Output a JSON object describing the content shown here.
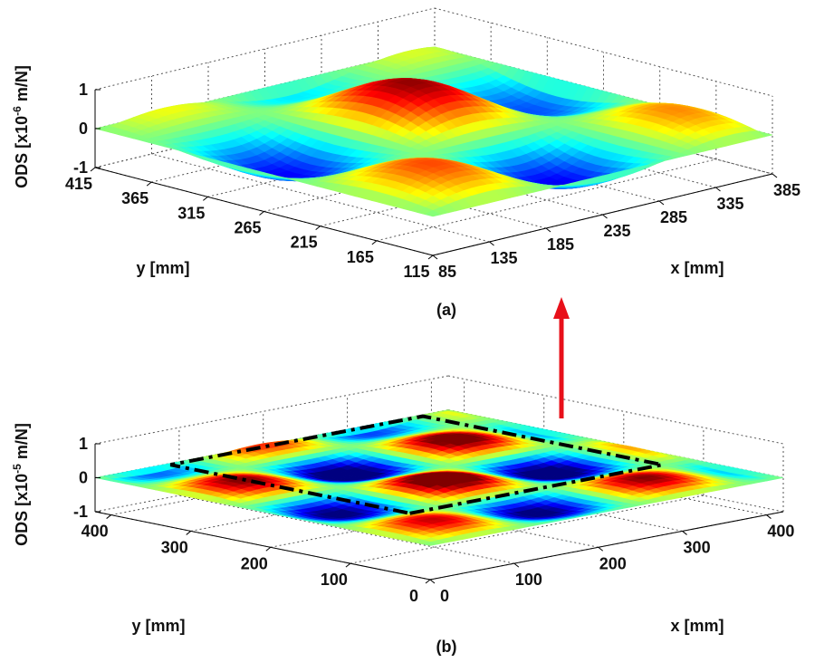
{
  "chart_data": [
    {
      "type": "surface",
      "panel": "(a)",
      "xlabel": "x [mm]",
      "ylabel": "y [mm]",
      "zlabel": {
        "text": "ODS [x10",
        "exponent": "-6",
        "unit": "m/N]"
      },
      "xlim": [
        85,
        385
      ],
      "ylim": [
        115,
        415
      ],
      "zlim": [
        -1,
        1
      ],
      "xticks": [
        85,
        135,
        185,
        235,
        285,
        335,
        385
      ],
      "yticks": [
        115,
        165,
        215,
        265,
        315,
        365,
        415
      ],
      "zticks": [
        -1,
        0,
        1
      ],
      "grid": true
    },
    {
      "type": "surface",
      "panel": "(b)",
      "xlabel": "x [mm]",
      "ylabel": "y [mm]",
      "zlabel": {
        "text": "ODS [x10",
        "exponent": "-5",
        "unit": "m/N]"
      },
      "xlim": [
        0,
        420
      ],
      "ylim": [
        0,
        420
      ],
      "zlim": [
        -1,
        1
      ],
      "xticks": [
        0,
        100,
        200,
        300,
        400
      ],
      "yticks": [
        0,
        100,
        200,
        300,
        400
      ],
      "zticks": [
        -1,
        0,
        1
      ],
      "grid": true
    }
  ]
}
